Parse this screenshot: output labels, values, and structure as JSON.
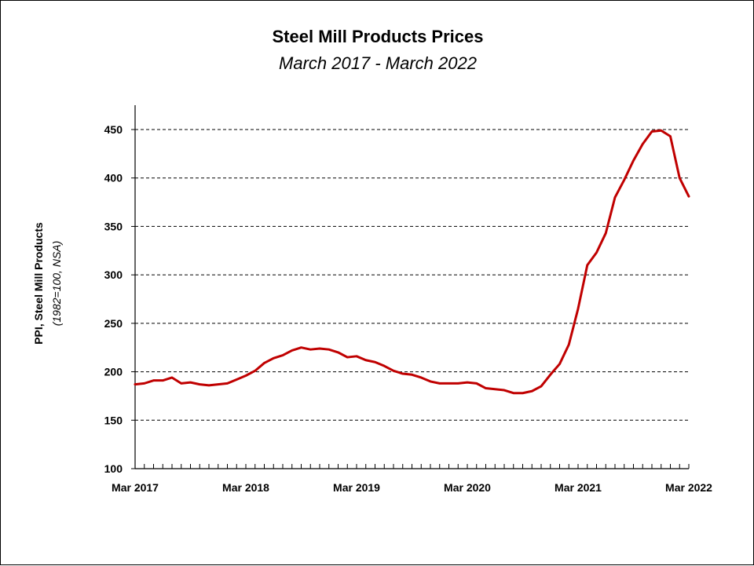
{
  "chart_data": {
    "type": "line",
    "title": "Steel Mill Products Prices",
    "subtitle": "March 2017 - March 2022",
    "ylabel": "PPI, Steel Mill Products",
    "ylabel_sub": "(1982=100, NSA)",
    "xlabel": "",
    "ylim": [
      100,
      460
    ],
    "yticks": [
      100,
      150,
      200,
      250,
      300,
      350,
      400,
      450
    ],
    "xtick_labels": [
      {
        "label": "Mar 2017",
        "index": 0
      },
      {
        "label": "Mar 2018",
        "index": 12
      },
      {
        "label": "Mar 2019",
        "index": 24
      },
      {
        "label": "Mar 2020",
        "index": 36
      },
      {
        "label": "Mar 2021",
        "index": 48
      },
      {
        "label": "Mar 2022",
        "index": 60
      }
    ],
    "grid": true,
    "grid_style": "dashed-horizontal",
    "legend": "none",
    "line_color": "#c00000",
    "series": [
      {
        "values": [
          187,
          188,
          191,
          191,
          194,
          188,
          189,
          187,
          186,
          187,
          188,
          192,
          196,
          201,
          209,
          214,
          217,
          222,
          225,
          223,
          224,
          223,
          220,
          215,
          216,
          212,
          210,
          206,
          201,
          198,
          197,
          194,
          190,
          188,
          188,
          188,
          189,
          188,
          183,
          182,
          181,
          178,
          178,
          180,
          185,
          197,
          208,
          228,
          265,
          310,
          323,
          343,
          380,
          398,
          418,
          435,
          448,
          449,
          443,
          400,
          381
        ]
      }
    ]
  }
}
